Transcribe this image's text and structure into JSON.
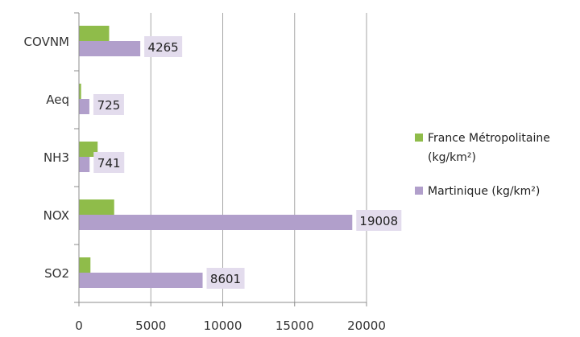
{
  "chart_data": {
    "type": "bar",
    "orientation": "horizontal",
    "categories": [
      "COVNM",
      "Aeq",
      "NH3",
      "NOX",
      "SO2"
    ],
    "series": [
      {
        "name": "France Métropolitaine (kg/km²)",
        "name_lines": [
          "France Métropolitaine",
          "(kg/km²)"
        ],
        "color": "#8fbc4a",
        "values": [
          2100,
          150,
          1300,
          2450,
          800
        ],
        "labels": [
          null,
          null,
          null,
          null,
          null
        ]
      },
      {
        "name": "Martinique (kg/km²)",
        "name_lines": [
          "Martinique (kg/km²)"
        ],
        "color": "#b19fcb",
        "values": [
          4265,
          725,
          741,
          19008,
          8601
        ],
        "labels": [
          "4265",
          "725",
          "741",
          "19008",
          "8601"
        ]
      }
    ],
    "x_ticks": [
      0,
      5000,
      10000,
      15000,
      20000
    ],
    "x_tick_labels": [
      "0",
      "5000",
      "10000",
      "15000",
      "20000"
    ],
    "xlim": [
      0,
      20000
    ],
    "grid": "vertical",
    "legend_position": "right",
    "data_label_bg": "#e3dced"
  }
}
